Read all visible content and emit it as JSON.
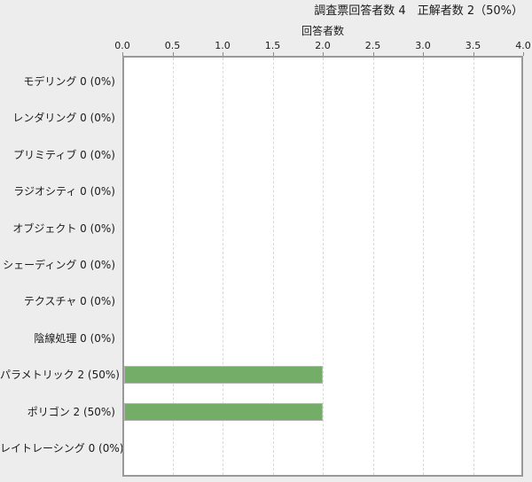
{
  "chart_data": {
    "type": "bar",
    "orientation": "horizontal",
    "title": "調査票回答者数 4　正解者数 2（50%）",
    "xlabel": "回答者数",
    "ylabel": "",
    "xlim": [
      0,
      4
    ],
    "xticks": [
      "0.0",
      "0.5",
      "1.0",
      "1.5",
      "2.0",
      "2.5",
      "3.0",
      "3.5",
      "4.0"
    ],
    "grid": "vertical dashed gridlines at each 0.5 tick, top axis",
    "legend": "none",
    "categories": [
      "モデリング",
      "レンダリング",
      "プリミティブ",
      "ラジオシティ",
      "オブジェクト",
      "シェーディング",
      "テクスチャ",
      "陰線処理",
      "パラメトリック",
      "ポリゴン",
      "レイトレーシング"
    ],
    "values": [
      0,
      0,
      0,
      0,
      0,
      0,
      0,
      0,
      2,
      2,
      0
    ],
    "percentages": [
      0,
      0,
      0,
      0,
      0,
      0,
      0,
      0,
      50,
      50,
      0
    ],
    "category_display": [
      "モデリング 0 (0%)",
      "レンダリング 0 (0%)",
      "プリミティブ 0 (0%)",
      "ラジオシティ 0 (0%)",
      "オブジェクト 0 (0%)",
      "シェーディング 0 (0%)",
      "テクスチャ 0 (0%)",
      "陰線処理 0 (0%)",
      "パラメトリック 2 (50%)",
      "ポリゴン 2 (50%)",
      "レイトレーシング 0 (0%)"
    ]
  },
  "colors": {
    "page_bg": "#ededed",
    "plot_bg": "#ffffff",
    "plot_border": "#999999",
    "gridline": "#d9d9d9",
    "tick": "#888888",
    "bar_fill": "#74ad68",
    "bar_border": "#b3b3b3",
    "text": "#1a1a1a"
  }
}
